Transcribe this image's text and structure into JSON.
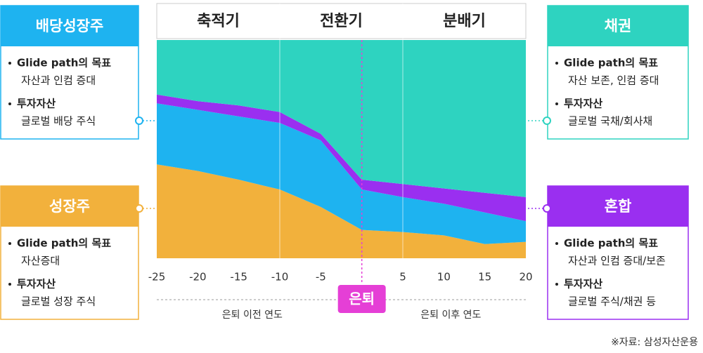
{
  "chart_data": {
    "type": "stacked_area",
    "x": [
      -25,
      -20,
      -15,
      -10,
      -5,
      0,
      5,
      10,
      15,
      20
    ],
    "xlim": [
      -25,
      20
    ],
    "xticks": [
      -25,
      -20,
      -15,
      -10,
      -5,
      5,
      10,
      15,
      20
    ],
    "ylim": [
      0,
      100
    ],
    "series": [
      {
        "name": "성장주",
        "color": "#f2b13c",
        "values": [
          43,
          40,
          36,
          31.5,
          23.5,
          13,
          12,
          10.5,
          6.5,
          7.5
        ],
        "goal_heading": "Glide path의 목표",
        "goal": "자산증대",
        "assets_heading": "투자자산",
        "assets": "글로벌 성장 주식"
      },
      {
        "name": "배당성장주",
        "color": "#1eb3f0",
        "values": [
          28,
          28,
          29,
          30.5,
          30.5,
          18.5,
          16,
          14.5,
          14.5,
          9.5
        ],
        "goal_heading": "Glide path의 목표",
        "goal": "자산과 인컴 증대",
        "assets_heading": "투자자산",
        "assets": "글로벌 배당 주식"
      },
      {
        "name": "혼합",
        "color": "#9a2ff0",
        "values": [
          4,
          4,
          5,
          5,
          3,
          4.5,
          6,
          7,
          9,
          11
        ],
        "goal_heading": "Glide path의 목표",
        "goal": "자산과 인컴 증대/보존",
        "assets_heading": "투자자산",
        "assets": "글로벌 주식/채권 등"
      },
      {
        "name": "채권",
        "color": "#2ed3c0",
        "values": [
          25,
          28,
          30,
          33,
          43,
          64,
          66,
          68,
          70,
          72
        ],
        "goal_heading": "Glide path의 목표",
        "goal": "자산 보존, 인컴 증대",
        "assets_heading": "투자자산",
        "assets": "글로벌 국채/회사채"
      }
    ],
    "phases": [
      {
        "label": "축적기",
        "range": [
          -25,
          -10
        ]
      },
      {
        "label": "전환기",
        "range": [
          -10,
          5
        ]
      },
      {
        "label": "분배기",
        "range": [
          5,
          20
        ]
      }
    ],
    "retirement": {
      "label": "은퇴",
      "x": 0
    },
    "before_label": "은퇴 이전 연도",
    "after_label": "은퇴 이후 연도",
    "source": "※자료: 삼성자산운용"
  }
}
